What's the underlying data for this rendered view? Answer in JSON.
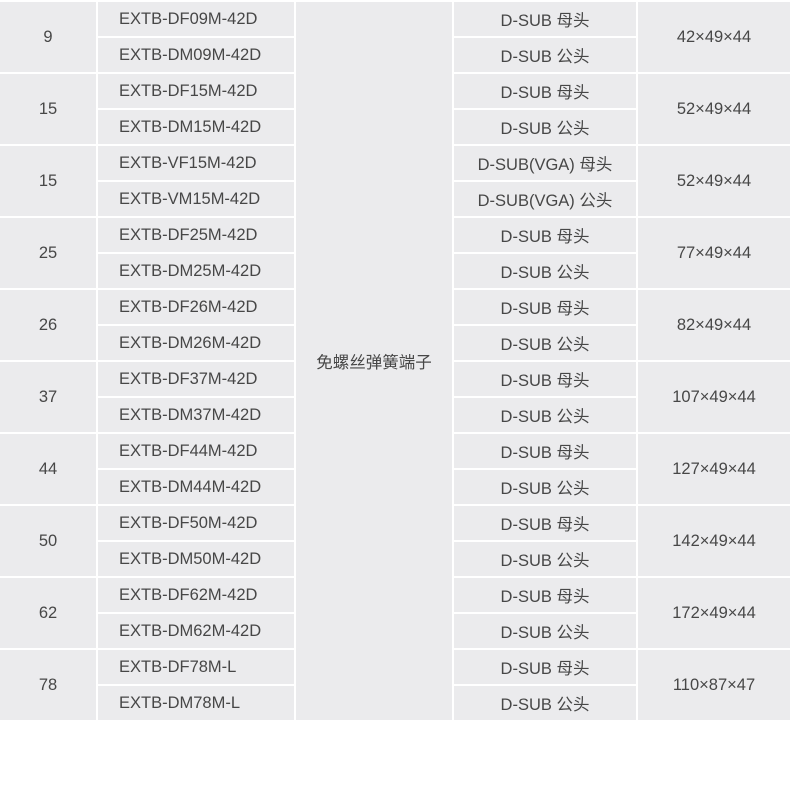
{
  "table": {
    "terminal_type": "免螺丝弹簧端子",
    "groups": [
      {
        "pins": "9",
        "dimensions": "42×49×44",
        "rows": [
          {
            "model": "EXTB-DF09M-42D",
            "connector": "D-SUB 母头"
          },
          {
            "model": "EXTB-DM09M-42D",
            "connector": "D-SUB 公头"
          }
        ]
      },
      {
        "pins": "15",
        "dimensions": "52×49×44",
        "rows": [
          {
            "model": "EXTB-DF15M-42D",
            "connector": "D-SUB 母头"
          },
          {
            "model": "EXTB-DM15M-42D",
            "connector": "D-SUB 公头"
          }
        ]
      },
      {
        "pins": "15",
        "dimensions": "52×49×44",
        "rows": [
          {
            "model": "EXTB-VF15M-42D",
            "connector": "D-SUB(VGA) 母头"
          },
          {
            "model": "EXTB-VM15M-42D",
            "connector": "D-SUB(VGA) 公头"
          }
        ]
      },
      {
        "pins": "25",
        "dimensions": "77×49×44",
        "rows": [
          {
            "model": "EXTB-DF25M-42D",
            "connector": "D-SUB 母头"
          },
          {
            "model": "EXTB-DM25M-42D",
            "connector": "D-SUB 公头"
          }
        ]
      },
      {
        "pins": "26",
        "dimensions": "82×49×44",
        "rows": [
          {
            "model": "EXTB-DF26M-42D",
            "connector": "D-SUB 母头"
          },
          {
            "model": "EXTB-DM26M-42D",
            "connector": "D-SUB 公头"
          }
        ]
      },
      {
        "pins": "37",
        "dimensions": "107×49×44",
        "rows": [
          {
            "model": "EXTB-DF37M-42D",
            "connector": "D-SUB 母头"
          },
          {
            "model": "EXTB-DM37M-42D",
            "connector": "D-SUB 公头"
          }
        ]
      },
      {
        "pins": "44",
        "dimensions": "127×49×44",
        "rows": [
          {
            "model": "EXTB-DF44M-42D",
            "connector": "D-SUB 母头"
          },
          {
            "model": "EXTB-DM44M-42D",
            "connector": "D-SUB 公头"
          }
        ]
      },
      {
        "pins": "50",
        "dimensions": "142×49×44",
        "rows": [
          {
            "model": "EXTB-DF50M-42D",
            "connector": "D-SUB 母头"
          },
          {
            "model": "EXTB-DM50M-42D",
            "connector": "D-SUB 公头"
          }
        ]
      },
      {
        "pins": "62",
        "dimensions": "172×49×44",
        "rows": [
          {
            "model": "EXTB-DF62M-42D",
            "connector": "D-SUB 母头"
          },
          {
            "model": "EXTB-DM62M-42D",
            "connector": "D-SUB 公头"
          }
        ]
      },
      {
        "pins": "78",
        "dimensions": "110×87×47",
        "rows": [
          {
            "model": "EXTB-DF78M-L",
            "connector": "D-SUB 母头"
          },
          {
            "model": "EXTB-DM78M-L",
            "connector": "D-SUB 公头"
          }
        ]
      }
    ]
  }
}
